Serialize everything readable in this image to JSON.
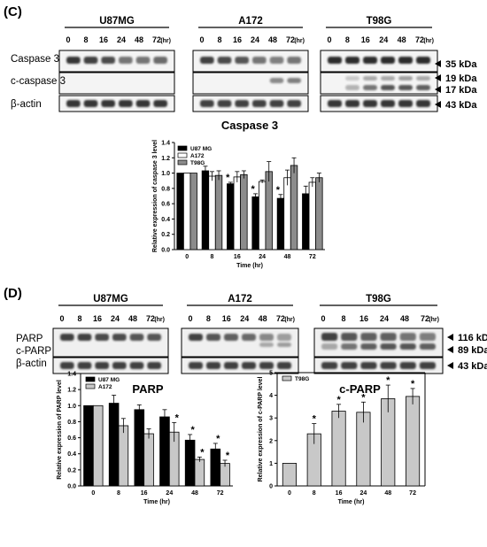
{
  "panel_c": {
    "label": "(C)",
    "cell_lines": [
      "U87MG",
      "A172",
      "T98G"
    ],
    "timepoints": [
      "0",
      "8",
      "16",
      "24",
      "48",
      "72"
    ],
    "hr_label": "(hr)",
    "rows": [
      "Caspase 3",
      "c-caspase 3",
      "β-actin"
    ],
    "kda": [
      "35 kDa",
      "19 kDa",
      "17 kDa",
      "43 kDa"
    ]
  },
  "panel_d": {
    "label": "(D)",
    "cell_lines": [
      "U87MG",
      "A172",
      "T98G"
    ],
    "timepoints": [
      "0",
      "8",
      "16",
      "24",
      "48",
      "72"
    ],
    "hr_label": "(hr)",
    "rows": [
      "PARP",
      "c-PARP",
      "β-actin"
    ],
    "kda": [
      "116 kDa",
      "89 kDa",
      "43 kDa"
    ]
  },
  "chart_data": [
    {
      "id": "caspase3",
      "type": "bar",
      "title": "Caspase 3",
      "xlabel": "Time (hr)",
      "ylabel": "Relative expression of caspase 3 level",
      "categories": [
        "0",
        "8",
        "16",
        "24",
        "48",
        "72"
      ],
      "ylim": [
        0,
        1.4
      ],
      "yticks": [
        0.0,
        0.2,
        0.4,
        0.6,
        0.8,
        1.0,
        1.2,
        1.4
      ],
      "legend_position": "top-left",
      "series": [
        {
          "name": "U87 MG",
          "color": "#000000",
          "values": [
            1.0,
            1.03,
            0.86,
            0.69,
            0.67,
            0.73
          ],
          "errors": [
            0.0,
            0.06,
            0.02,
            0.04,
            0.05,
            0.1
          ]
        },
        {
          "name": "A172",
          "color": "#ffffff",
          "values": [
            1.0,
            0.96,
            0.95,
            0.89,
            0.94,
            0.88
          ],
          "errors": [
            0.0,
            0.06,
            0.07,
            0.02,
            0.1,
            0.06
          ]
        },
        {
          "name": "T98G",
          "color": "#8c8c8c",
          "values": [
            1.0,
            0.97,
            0.98,
            1.02,
            1.1,
            0.94
          ],
          "errors": [
            0.0,
            0.06,
            0.05,
            0.13,
            0.1,
            0.06
          ]
        }
      ],
      "significance": [
        {
          "category": "16",
          "series": "U87 MG",
          "mark": "*"
        },
        {
          "category": "24",
          "series": "U87 MG",
          "mark": "*"
        },
        {
          "category": "48",
          "series": "U87 MG",
          "mark": "*"
        }
      ]
    },
    {
      "id": "parp",
      "type": "bar",
      "title": "PARP",
      "xlabel": "Time (hr)",
      "ylabel": "Relative expression of PARP level",
      "categories": [
        "0",
        "8",
        "16",
        "24",
        "48",
        "72"
      ],
      "ylim": [
        0,
        1.4
      ],
      "yticks": [
        0.0,
        0.2,
        0.4,
        0.6,
        0.8,
        1.0,
        1.2,
        1.4
      ],
      "legend_position": "top-left",
      "series": [
        {
          "name": "U87 MG",
          "color": "#000000",
          "values": [
            1.0,
            1.03,
            0.95,
            0.86,
            0.57,
            0.46
          ],
          "errors": [
            0.0,
            0.1,
            0.06,
            0.09,
            0.07,
            0.07
          ]
        },
        {
          "name": "A172",
          "color": "#c8c8c8",
          "values": [
            1.0,
            0.75,
            0.65,
            0.67,
            0.33,
            0.28
          ],
          "errors": [
            0.0,
            0.09,
            0.06,
            0.12,
            0.03,
            0.04
          ]
        }
      ],
      "significance": [
        {
          "category": "24",
          "series": "A172",
          "mark": "*"
        },
        {
          "category": "48",
          "series": "U87 MG",
          "mark": "*"
        },
        {
          "category": "48",
          "series": "A172",
          "mark": "*"
        },
        {
          "category": "72",
          "series": "U87 MG",
          "mark": "*"
        },
        {
          "category": "72",
          "series": "A172",
          "mark": "*"
        }
      ]
    },
    {
      "id": "cparp",
      "type": "bar",
      "title": "c-PARP",
      "xlabel": "Time (hr)",
      "ylabel": "Relative expression of c-PARP level",
      "categories": [
        "0",
        "8",
        "16",
        "24",
        "48",
        "72"
      ],
      "ylim": [
        0,
        5
      ],
      "yticks": [
        0,
        1,
        2,
        3,
        4,
        5
      ],
      "legend_position": "top-left",
      "series": [
        {
          "name": "T98G",
          "color": "#c8c8c8",
          "values": [
            1.0,
            2.3,
            3.3,
            3.25,
            3.85,
            3.95
          ],
          "errors": [
            0.0,
            0.45,
            0.3,
            0.45,
            0.6,
            0.35
          ]
        }
      ],
      "significance": [
        {
          "category": "8",
          "series": "T98G",
          "mark": "*"
        },
        {
          "category": "16",
          "series": "T98G",
          "mark": "*"
        },
        {
          "category": "24",
          "series": "T98G",
          "mark": "*"
        },
        {
          "category": "48",
          "series": "T98G",
          "mark": "*"
        },
        {
          "category": "72",
          "series": "T98G",
          "mark": "*"
        }
      ]
    }
  ]
}
